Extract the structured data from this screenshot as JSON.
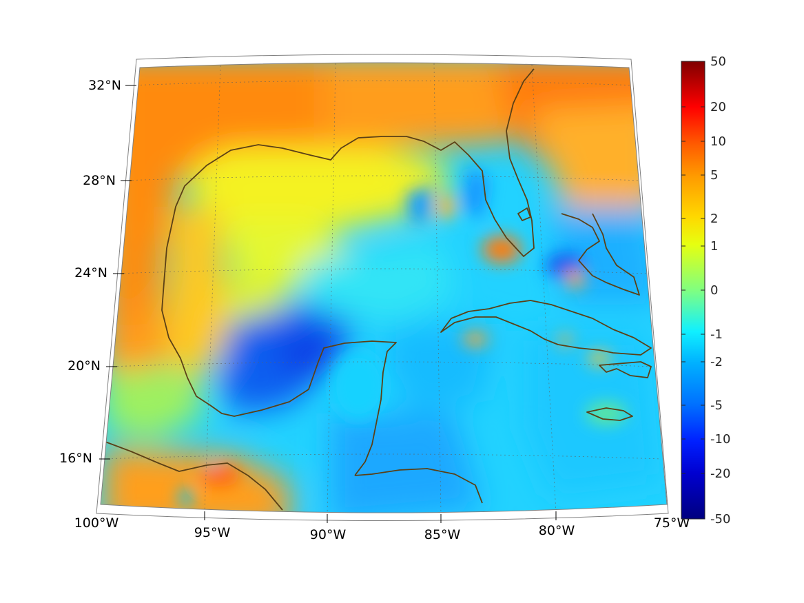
{
  "map": {
    "projection": "conic",
    "region": "Gulf of Mexico and Caribbean",
    "lon_range": [
      -100,
      -75
    ],
    "lat_range": [
      14,
      33
    ],
    "graticule": true,
    "coastline_color": "#5b4016",
    "lon_ticks": [
      {
        "value": -100,
        "label": "100°W"
      },
      {
        "value": -95,
        "label": "95°W"
      },
      {
        "value": -90,
        "label": "90°W"
      },
      {
        "value": -85,
        "label": "85°W"
      },
      {
        "value": -80,
        "label": "80°W"
      },
      {
        "value": -75,
        "label": "75°W"
      }
    ],
    "lat_ticks": [
      {
        "value": 16,
        "label": "16°N"
      },
      {
        "value": 20,
        "label": "20°N"
      },
      {
        "value": 24,
        "label": "24°N"
      },
      {
        "value": 28,
        "label": "28°N"
      },
      {
        "value": 32,
        "label": "32°N"
      }
    ]
  },
  "colorbar": {
    "colormap": "jet",
    "scale": "nonlinear",
    "ticks": [
      "50",
      "20",
      "10",
      "5",
      "2",
      "1",
      "0",
      "-1",
      "-2",
      "-5",
      "-10",
      "-20",
      "-50"
    ],
    "colors": [
      "#7f0000",
      "#ff0000",
      "#ff5a00",
      "#ff9a00",
      "#ffd800",
      "#e6ff10",
      "#80ff80",
      "#10f0ff",
      "#00b0ff",
      "#0070ff",
      "#0020ff",
      "#0000d0",
      "#00007f"
    ]
  }
}
